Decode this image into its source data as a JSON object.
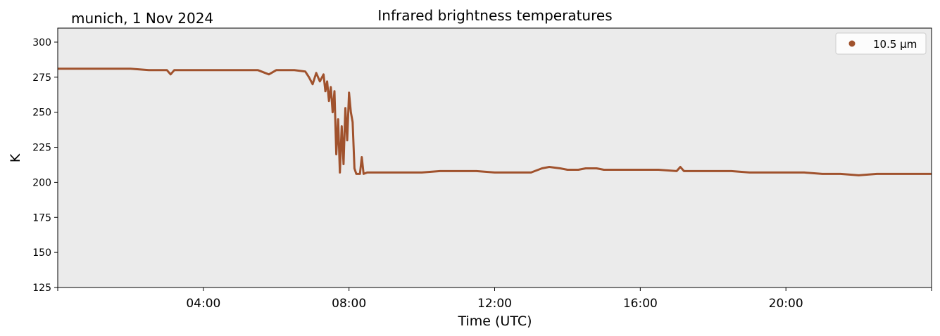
{
  "chart_data": {
    "type": "line",
    "title": "Infrared brightness temperatures",
    "subtitle": "munich, 1 Nov 2024",
    "xlabel": "Time (UTC)",
    "ylabel": "K",
    "xlim": [
      "00:00",
      "24:00"
    ],
    "ylim": [
      125,
      310
    ],
    "x_ticks": [
      "04:00",
      "08:00",
      "12:00",
      "16:00",
      "20:00"
    ],
    "y_ticks": [
      125,
      150,
      175,
      200,
      225,
      250,
      275,
      300
    ],
    "grid": false,
    "legend_position": "top-right",
    "plot_background": "#ebebeb",
    "series": [
      {
        "name": "10.5 µm",
        "color": "#a0522d",
        "x_hours": [
          0.0,
          0.5,
          1.0,
          1.5,
          2.0,
          2.5,
          3.0,
          3.1,
          3.2,
          3.5,
          4.0,
          4.5,
          5.0,
          5.5,
          5.7,
          5.8,
          6.0,
          6.2,
          6.5,
          6.8,
          6.9,
          7.0,
          7.1,
          7.2,
          7.3,
          7.35,
          7.4,
          7.45,
          7.5,
          7.55,
          7.6,
          7.65,
          7.7,
          7.75,
          7.8,
          7.85,
          7.9,
          7.95,
          8.0,
          8.05,
          8.1,
          8.15,
          8.2,
          8.3,
          8.35,
          8.4,
          8.5,
          9.0,
          9.5,
          10.0,
          10.5,
          11.0,
          11.5,
          12.0,
          12.5,
          13.0,
          13.3,
          13.5,
          13.8,
          14.0,
          14.3,
          14.5,
          14.8,
          15.0,
          15.5,
          16.0,
          16.5,
          17.0,
          17.1,
          17.2,
          17.5,
          18.0,
          18.5,
          19.0,
          19.5,
          20.0,
          20.5,
          21.0,
          21.5,
          22.0,
          22.5,
          23.0,
          23.5,
          24.0
        ],
        "values": [
          281,
          281,
          281,
          281,
          281,
          280,
          280,
          277,
          280,
          280,
          280,
          280,
          280,
          280,
          278,
          277,
          280,
          280,
          280,
          279,
          275,
          270,
          278,
          272,
          277,
          265,
          272,
          258,
          268,
          250,
          265,
          220,
          245,
          207,
          240,
          213,
          253,
          230,
          264,
          250,
          243,
          210,
          206,
          206,
          218,
          206,
          207,
          207,
          207,
          207,
          208,
          208,
          208,
          207,
          207,
          207,
          210,
          211,
          210,
          209,
          209,
          210,
          210,
          209,
          209,
          209,
          209,
          208,
          211,
          208,
          208,
          208,
          208,
          207,
          207,
          207,
          207,
          206,
          206,
          205,
          206,
          206,
          206,
          206
        ]
      }
    ]
  }
}
